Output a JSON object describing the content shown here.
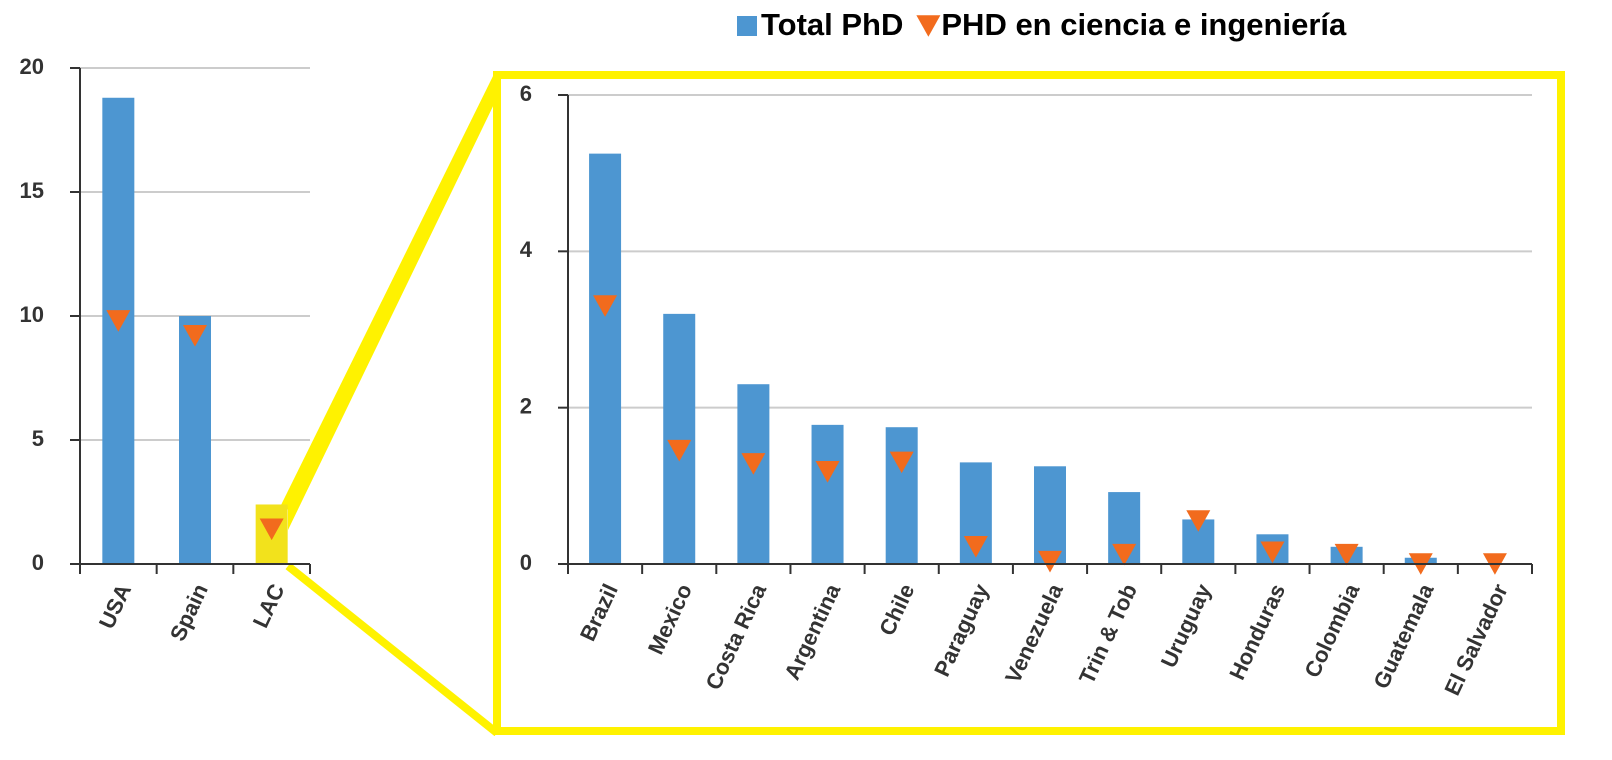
{
  "chart_data": [
    {
      "type": "bar",
      "categories": [
        "USA",
        "Spain",
        "LAC"
      ],
      "series": [
        {
          "name": "Total PhD",
          "color": "#4d96d1",
          "colors": [
            "#4d96d1",
            "#4d96d1",
            "#f2e21c"
          ],
          "values": [
            18.8,
            10.0,
            2.4
          ]
        },
        {
          "name": "PHD en ciencia e ingeniería",
          "color": "#f26b1d",
          "marker": "triangle-down",
          "values": [
            9.8,
            9.2,
            1.4
          ]
        }
      ],
      "ylim": [
        0,
        20
      ],
      "yticks": [
        0,
        5,
        10,
        15,
        20
      ],
      "grid": true
    },
    {
      "type": "bar",
      "categories": [
        "Brazil",
        "Mexico",
        "Costa Rica",
        "Argentina",
        "Chile",
        "Paraguay",
        "Venezuela",
        "Trin & Tob",
        "Uruguay",
        "Honduras",
        "Colombia",
        "Guatemala",
        "El Salvador"
      ],
      "series": [
        {
          "color": "#4d96d1",
          "values": [
            5.25,
            3.2,
            2.3,
            1.78,
            1.75,
            1.3,
            1.25,
            0.92,
            0.57,
            0.38,
            0.22,
            0.08,
            0
          ]
        },
        {
          "color": "#f26b1d",
          "marker": "triangle-down",
          "values": [
            3.3,
            1.45,
            1.28,
            1.18,
            1.3,
            0.22,
            0.03,
            0.12,
            0.55,
            0.15,
            0.12,
            0,
            0
          ]
        }
      ],
      "ylim": [
        0,
        6
      ],
      "yticks": [
        0,
        2,
        4,
        6
      ],
      "grid": true
    }
  ]
}
